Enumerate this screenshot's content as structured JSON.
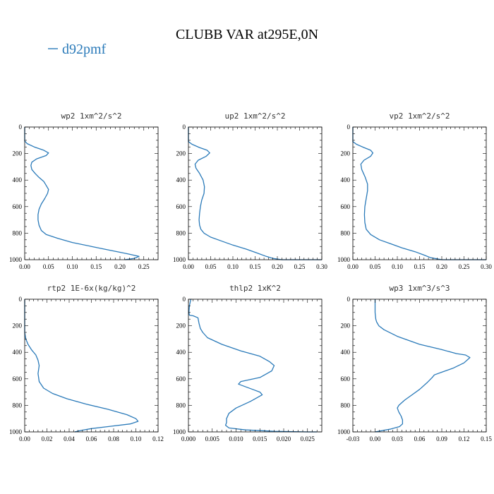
{
  "figure": {
    "title": "CLUBB VAR at295E,0N",
    "legend": {
      "label": "d92pmf",
      "color": "#2a7ab9"
    }
  },
  "chart_data": [
    {
      "type": "line",
      "title": "wp2  1xm^2/s^2",
      "series": [
        {
          "name": "d92pmf",
          "color": "#2a7ab9",
          "x": [
            0.0,
            0.0,
            0.005,
            0.02,
            0.04,
            0.05,
            0.045,
            0.025,
            0.015,
            0.013,
            0.015,
            0.022,
            0.03,
            0.04,
            0.045,
            0.05,
            0.048,
            0.042,
            0.035,
            0.03,
            0.028,
            0.028,
            0.03,
            0.035,
            0.045,
            0.07,
            0.1,
            0.14,
            0.18,
            0.215,
            0.24,
            0.23,
            0.21
          ],
          "y": [
            0,
            105,
            125,
            150,
            175,
            195,
            215,
            240,
            265,
            290,
            320,
            350,
            380,
            410,
            440,
            470,
            500,
            540,
            580,
            620,
            660,
            700,
            740,
            780,
            810,
            840,
            870,
            900,
            930,
            955,
            975,
            990,
            1000
          ]
        }
      ],
      "xlim": [
        0,
        0.28
      ],
      "ylim": [
        1000,
        0
      ],
      "xticks": [
        0.0,
        0.05,
        0.1,
        0.15,
        0.2,
        0.25
      ],
      "xtick_labels": [
        "0.00",
        "0.05",
        "0.10",
        "0.15",
        "0.20",
        "0.25"
      ],
      "yticks": [
        0,
        200,
        400,
        600,
        800,
        1000
      ],
      "ytick_labels": [
        "0",
        "200",
        "400",
        "600",
        "800",
        "1000"
      ]
    },
    {
      "type": "line",
      "title": "up2  1xm^2/s^2",
      "series": [
        {
          "name": "d92pmf",
          "color": "#2a7ab9",
          "x": [
            0.0,
            0.0,
            0.008,
            0.025,
            0.042,
            0.048,
            0.04,
            0.022,
            0.015,
            0.017,
            0.025,
            0.033,
            0.036,
            0.035,
            0.03,
            0.027,
            0.025,
            0.024,
            0.025,
            0.028,
            0.035,
            0.05,
            0.075,
            0.1,
            0.13,
            0.155,
            0.175,
            0.19,
            0.21,
            0.3
          ],
          "y": [
            0,
            110,
            130,
            155,
            175,
            195,
            220,
            250,
            280,
            310,
            350,
            400,
            450,
            500,
            550,
            600,
            650,
            700,
            740,
            770,
            800,
            830,
            860,
            890,
            920,
            950,
            975,
            990,
            1000,
            1000
          ]
        }
      ],
      "xlim": [
        0,
        0.3
      ],
      "ylim": [
        1000,
        0
      ],
      "xticks": [
        0.0,
        0.05,
        0.1,
        0.15,
        0.2,
        0.25,
        0.3
      ],
      "xtick_labels": [
        "0.00",
        "0.05",
        "0.10",
        "0.15",
        "0.20",
        "0.25",
        "0.30"
      ],
      "yticks": [
        0,
        200,
        400,
        600,
        800,
        1000
      ],
      "ytick_labels": [
        "0",
        "200",
        "400",
        "600",
        "800",
        "1000"
      ]
    },
    {
      "type": "line",
      "title": "vp2  1xm^2/s^2",
      "series": [
        {
          "name": "d92pmf",
          "color": "#2a7ab9",
          "x": [
            0.0,
            0.0,
            0.008,
            0.025,
            0.04,
            0.045,
            0.04,
            0.025,
            0.018,
            0.02,
            0.028,
            0.033,
            0.033,
            0.03,
            0.027,
            0.026,
            0.027,
            0.03,
            0.04,
            0.06,
            0.085,
            0.11,
            0.14,
            0.16,
            0.175,
            0.2,
            0.3
          ],
          "y": [
            0,
            110,
            130,
            155,
            175,
            195,
            220,
            250,
            280,
            320,
            380,
            430,
            480,
            540,
            600,
            660,
            720,
            770,
            810,
            850,
            880,
            910,
            940,
            965,
            985,
            1000,
            1000
          ]
        }
      ],
      "xlim": [
        0,
        0.3
      ],
      "ylim": [
        1000,
        0
      ],
      "xticks": [
        0.0,
        0.05,
        0.1,
        0.15,
        0.2,
        0.25,
        0.3
      ],
      "xtick_labels": [
        "0.00",
        "0.05",
        "0.10",
        "0.15",
        "0.20",
        "0.25",
        "0.30"
      ],
      "yticks": [
        0,
        200,
        400,
        600,
        800,
        1000
      ],
      "ytick_labels": [
        "0",
        "200",
        "400",
        "600",
        "800",
        "1000"
      ]
    },
    {
      "type": "line",
      "title": "rtp2  1E-6x(kg/kg)^2",
      "series": [
        {
          "name": "d92pmf",
          "color": "#2a7ab9",
          "x": [
            0.0,
            0.0,
            0.001,
            0.003,
            0.006,
            0.01,
            0.012,
            0.013,
            0.012,
            0.013,
            0.017,
            0.025,
            0.038,
            0.055,
            0.075,
            0.092,
            0.1,
            0.102,
            0.095,
            0.075,
            0.06,
            0.05,
            0.045
          ],
          "y": [
            0,
            250,
            300,
            340,
            380,
            420,
            460,
            500,
            560,
            620,
            670,
            710,
            750,
            790,
            830,
            870,
            900,
            920,
            940,
            960,
            975,
            990,
            1000
          ]
        }
      ],
      "xlim": [
        0,
        0.12
      ],
      "ylim": [
        1000,
        0
      ],
      "xticks": [
        0.0,
        0.02,
        0.04,
        0.06,
        0.08,
        0.1,
        0.12
      ],
      "xtick_labels": [
        "0.00",
        "0.02",
        "0.04",
        "0.06",
        "0.08",
        "0.10",
        "0.12"
      ],
      "yticks": [
        0,
        200,
        400,
        600,
        800,
        1000
      ],
      "ytick_labels": [
        "0",
        "200",
        "400",
        "600",
        "800",
        "1000"
      ]
    },
    {
      "type": "line",
      "title": "thlp2  1xK^2",
      "series": [
        {
          "name": "d92pmf",
          "color": "#2a7ab9",
          "x": [
            0.0005,
            0.0002,
            0.0001,
            0.0002,
            0.001,
            0.002,
            0.0022,
            0.0025,
            0.003,
            0.004,
            0.007,
            0.011,
            0.015,
            0.017,
            0.018,
            0.0175,
            0.015,
            0.011,
            0.0105,
            0.0135,
            0.015,
            0.0155,
            0.013,
            0.01,
            0.0085,
            0.008,
            0.008,
            0.0078,
            0.0085,
            0.012,
            0.018,
            0.025,
            0.027
          ],
          "y": [
            0,
            50,
            100,
            120,
            125,
            140,
            180,
            220,
            250,
            290,
            340,
            390,
            430,
            470,
            500,
            540,
            590,
            620,
            640,
            680,
            700,
            720,
            770,
            820,
            860,
            900,
            930,
            950,
            970,
            985,
            995,
            1000,
            1000
          ]
        }
      ],
      "xlim": [
        0,
        0.028
      ],
      "ylim": [
        1000,
        0
      ],
      "xticks": [
        0.0,
        0.005,
        0.01,
        0.015,
        0.02,
        0.025
      ],
      "xtick_labels": [
        "0.000",
        "0.005",
        "0.010",
        "0.015",
        "0.020",
        "0.025"
      ],
      "yticks": [
        0,
        200,
        400,
        600,
        800,
        1000
      ],
      "ytick_labels": [
        "0",
        "200",
        "400",
        "600",
        "800",
        "1000"
      ]
    },
    {
      "type": "line",
      "title": "wp3  1xm^3/s^3",
      "series": [
        {
          "name": "d92pmf",
          "color": "#2a7ab9",
          "x": [
            0.0,
            0.0,
            0.001,
            0.002,
            0.003,
            0.005,
            0.012,
            0.03,
            0.06,
            0.09,
            0.11,
            0.122,
            0.128,
            0.12,
            0.105,
            0.09,
            0.08,
            0.077,
            0.07,
            0.06,
            0.05,
            0.04,
            0.032,
            0.03,
            0.032,
            0.035,
            0.037,
            0.037,
            0.033,
            0.02,
            0.0
          ],
          "y": [
            0,
            100,
            150,
            170,
            180,
            200,
            230,
            280,
            340,
            380,
            410,
            420,
            440,
            480,
            520,
            550,
            570,
            590,
            630,
            680,
            720,
            760,
            800,
            820,
            850,
            880,
            910,
            940,
            960,
            980,
            1000
          ]
        }
      ],
      "xlim": [
        -0.03,
        0.15
      ],
      "ylim": [
        1000,
        0
      ],
      "xticks": [
        -0.03,
        0.0,
        0.03,
        0.06,
        0.09,
        0.12,
        0.15
      ],
      "xtick_labels": [
        "-0.03",
        "0.00",
        "0.03",
        "0.06",
        "0.09",
        "0.12",
        "0.15"
      ],
      "yticks": [
        0,
        200,
        400,
        600,
        800,
        1000
      ],
      "ytick_labels": [
        "0",
        "200",
        "400",
        "600",
        "800",
        "1000"
      ]
    }
  ]
}
